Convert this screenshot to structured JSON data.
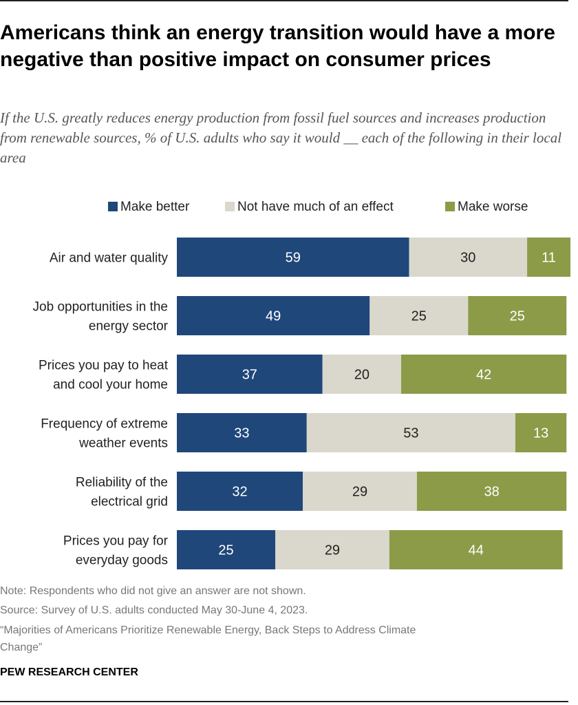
{
  "title": "Americans think an energy transition would have a more negative than positive impact on consumer prices",
  "subtitle": "If the U.S. greatly reduces energy production from fossil fuel sources and increases production from renewable sources, % of U.S. adults who say it would __ each of the following in their local area",
  "colors": {
    "better": "#1f477a",
    "neutral": "#dad7cc",
    "worse": "#8c9b47"
  },
  "chart_data": {
    "type": "bar",
    "orientation": "horizontal",
    "stacked": true,
    "categories": [
      [
        "Air and water quality"
      ],
      [
        "Job opportunities in the",
        "energy sector"
      ],
      [
        "Prices you pay to heat",
        "and cool your home"
      ],
      [
        "Frequency of extreme",
        "weather events"
      ],
      [
        "Reliability of the",
        "electrical grid"
      ],
      [
        "Prices you pay for",
        "everyday goods"
      ]
    ],
    "series": [
      {
        "name": "Make better",
        "values": [
          59,
          49,
          37,
          33,
          32,
          25
        ]
      },
      {
        "name": "Not have much of an effect",
        "values": [
          30,
          25,
          20,
          53,
          29,
          29
        ]
      },
      {
        "name": "Make worse",
        "values": [
          11,
          25,
          42,
          13,
          38,
          44
        ]
      }
    ],
    "xlim": [
      0,
      100
    ],
    "legend": "top",
    "data_labels": true
  },
  "footer": {
    "note": "Note: Respondents who did not give an answer are not shown.",
    "source": "Source: Survey of U.S. adults conducted May 30-June 4, 2023.",
    "report_line1": "“Majorities of Americans Prioritize Renewable Energy, Back Steps to Address Climate",
    "report_line2": "Change”",
    "credit": "PEW RESEARCH CENTER"
  }
}
